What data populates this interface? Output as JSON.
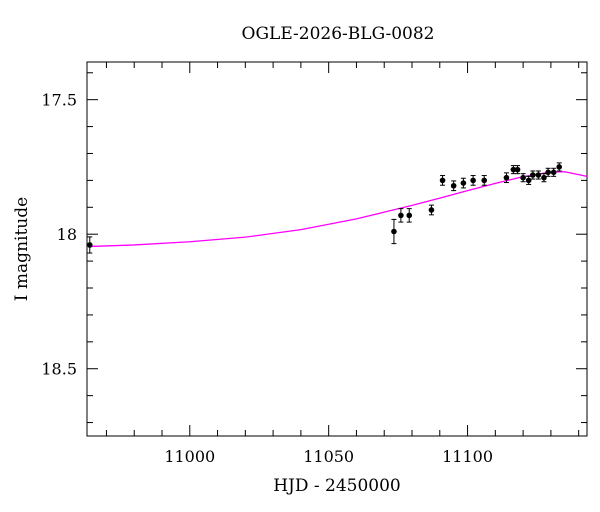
{
  "chart_data": {
    "type": "scatter",
    "title": "OGLE-2026-BLG-0082",
    "xlabel": "HJD - 2450000",
    "ylabel": "I magnitude",
    "xlim": [
      10963,
      11143
    ],
    "ylim": [
      18.75,
      17.36
    ],
    "y_inverted": true,
    "x_ticks_major": [
      11000,
      11050,
      11100
    ],
    "x_tick_labels": [
      "11000",
      "11050",
      "11100"
    ],
    "y_ticks_major": [
      17.5,
      18.0,
      18.5
    ],
    "y_tick_labels": [
      "17.5",
      "18",
      "18.5"
    ],
    "series": [
      {
        "name": "observations",
        "style": "points-with-error-bars",
        "color": "#000000",
        "points": [
          {
            "x": 10964.0,
            "y": 18.04,
            "err": 0.03
          },
          {
            "x": 11073.5,
            "y": 17.99,
            "err": 0.045
          },
          {
            "x": 11076.0,
            "y": 17.93,
            "err": 0.025
          },
          {
            "x": 11079.0,
            "y": 17.93,
            "err": 0.025
          },
          {
            "x": 11087.0,
            "y": 17.91,
            "err": 0.018
          },
          {
            "x": 11091.0,
            "y": 17.8,
            "err": 0.018
          },
          {
            "x": 11095.0,
            "y": 17.82,
            "err": 0.018
          },
          {
            "x": 11098.5,
            "y": 17.81,
            "err": 0.018
          },
          {
            "x": 11102.0,
            "y": 17.8,
            "err": 0.018
          },
          {
            "x": 11106.0,
            "y": 17.8,
            "err": 0.018
          },
          {
            "x": 11114.0,
            "y": 17.79,
            "err": 0.018
          },
          {
            "x": 11116.5,
            "y": 17.76,
            "err": 0.015
          },
          {
            "x": 11118.0,
            "y": 17.76,
            "err": 0.015
          },
          {
            "x": 11120.0,
            "y": 17.79,
            "err": 0.015
          },
          {
            "x": 11122.0,
            "y": 17.8,
            "err": 0.015
          },
          {
            "x": 11123.5,
            "y": 17.78,
            "err": 0.015
          },
          {
            "x": 11125.5,
            "y": 17.78,
            "err": 0.015
          },
          {
            "x": 11127.5,
            "y": 17.79,
            "err": 0.015
          },
          {
            "x": 11129.0,
            "y": 17.77,
            "err": 0.015
          },
          {
            "x": 11131.0,
            "y": 17.77,
            "err": 0.015
          },
          {
            "x": 11133.0,
            "y": 17.75,
            "err": 0.015
          }
        ]
      },
      {
        "name": "model",
        "style": "line",
        "color": "#ff00ff",
        "points": [
          {
            "x": 10963,
            "y": 18.046
          },
          {
            "x": 10980,
            "y": 18.04
          },
          {
            "x": 11000,
            "y": 18.028
          },
          {
            "x": 11020,
            "y": 18.011
          },
          {
            "x": 11040,
            "y": 17.983
          },
          {
            "x": 11060,
            "y": 17.943
          },
          {
            "x": 11070,
            "y": 17.918
          },
          {
            "x": 11080,
            "y": 17.893
          },
          {
            "x": 11090,
            "y": 17.866
          },
          {
            "x": 11100,
            "y": 17.838
          },
          {
            "x": 11110,
            "y": 17.811
          },
          {
            "x": 11120,
            "y": 17.786
          },
          {
            "x": 11130,
            "y": 17.769
          },
          {
            "x": 11135,
            "y": 17.768
          },
          {
            "x": 11143,
            "y": 17.785
          }
        ]
      }
    ]
  }
}
